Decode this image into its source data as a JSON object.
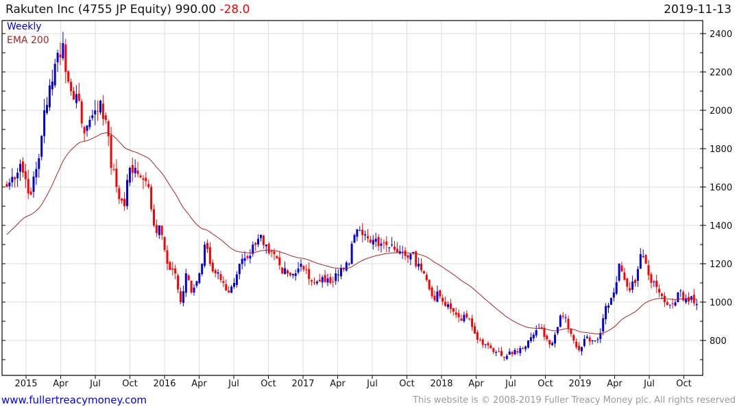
{
  "header": {
    "name": "Rakuten Inc (4755 JP Equity)",
    "price": "990.00",
    "change": "-28.0",
    "date": "2019-11-13"
  },
  "footer": {
    "link": "www.fullertreacymoney.com",
    "copyright": "This website is © 2008-2019 Fuller Treacy Money plc. All rights reserved"
  },
  "colors": {
    "up": "#0000dd",
    "down": "#ff0000",
    "ema": "#aa2222",
    "grid": "#dddddd"
  },
  "chart_data": {
    "type": "candlestick",
    "title": "Rakuten Inc (4755 JP Equity) 990.00 -28.0",
    "frequency_label": "Weekly",
    "overlay_label": "EMA 200",
    "ema_start": 1340,
    "ema_weeks": 40,
    "ylim": [
      650,
      2480
    ],
    "yticks": [
      800,
      1000,
      1200,
      1400,
      1600,
      1800,
      2000,
      2200,
      2400
    ],
    "xticks": [
      "2015",
      "Apr",
      "Jul",
      "Oct",
      "2016",
      "Apr",
      "Jul",
      "Oct",
      "2017",
      "Apr",
      "Jul",
      "Oct",
      "2018",
      "Apr",
      "Jul",
      "Oct",
      "2019",
      "Apr",
      "Jul",
      "Oct"
    ],
    "weekly_close_keypoints": [
      [
        0,
        1600
      ],
      [
        5,
        1720
      ],
      [
        9,
        1560
      ],
      [
        12,
        1750
      ],
      [
        14,
        2000
      ],
      [
        17,
        2150
      ],
      [
        19,
        2300
      ],
      [
        21,
        2350
      ],
      [
        22,
        2200
      ],
      [
        24,
        2100
      ],
      [
        27,
        2050
      ],
      [
        29,
        1880
      ],
      [
        31,
        1950
      ],
      [
        33,
        2000
      ],
      [
        35,
        2050
      ],
      [
        37,
        1950
      ],
      [
        39,
        1700
      ],
      [
        41,
        1600
      ],
      [
        44,
        1500
      ],
      [
        46,
        1700
      ],
      [
        48,
        1700
      ],
      [
        50,
        1650
      ],
      [
        53,
        1600
      ],
      [
        55,
        1400
      ],
      [
        58,
        1350
      ],
      [
        60,
        1200
      ],
      [
        63,
        1150
      ],
      [
        65,
        1000
      ],
      [
        67,
        1150
      ],
      [
        69,
        1050
      ],
      [
        72,
        1150
      ],
      [
        74,
        1300
      ],
      [
        76,
        1200
      ],
      [
        78,
        1150
      ],
      [
        81,
        1100
      ],
      [
        83,
        1050
      ],
      [
        85,
        1100
      ],
      [
        87,
        1200
      ],
      [
        90,
        1230
      ],
      [
        92,
        1300
      ],
      [
        95,
        1350
      ],
      [
        97,
        1300
      ],
      [
        100,
        1250
      ],
      [
        103,
        1150
      ],
      [
        105,
        1150
      ],
      [
        108,
        1150
      ],
      [
        110,
        1200
      ],
      [
        113,
        1120
      ],
      [
        115,
        1100
      ],
      [
        118,
        1130
      ],
      [
        121,
        1100
      ],
      [
        123,
        1150
      ],
      [
        126,
        1170
      ],
      [
        128,
        1200
      ],
      [
        130,
        1350
      ],
      [
        133,
        1350
      ],
      [
        136,
        1310
      ],
      [
        138,
        1330
      ],
      [
        141,
        1310
      ],
      [
        144,
        1300
      ],
      [
        146,
        1260
      ],
      [
        149,
        1240
      ],
      [
        151,
        1250
      ],
      [
        154,
        1200
      ],
      [
        156,
        1150
      ],
      [
        159,
        1030
      ],
      [
        162,
        1030
      ],
      [
        164,
        980
      ],
      [
        167,
        950
      ],
      [
        169,
        920
      ],
      [
        172,
        920
      ],
      [
        174,
        870
      ],
      [
        177,
        800
      ],
      [
        179,
        780
      ],
      [
        182,
        740
      ],
      [
        185,
        720
      ],
      [
        187,
        720
      ],
      [
        190,
        750
      ],
      [
        192,
        760
      ],
      [
        195,
        800
      ],
      [
        197,
        830
      ],
      [
        200,
        860
      ],
      [
        203,
        780
      ],
      [
        205,
        830
      ],
      [
        207,
        930
      ],
      [
        209,
        920
      ],
      [
        212,
        800
      ],
      [
        214,
        750
      ],
      [
        217,
        820
      ],
      [
        219,
        800
      ],
      [
        222,
        840
      ],
      [
        224,
        980
      ],
      [
        227,
        1050
      ],
      [
        229,
        1200
      ],
      [
        232,
        1080
      ],
      [
        235,
        1100
      ],
      [
        237,
        1250
      ],
      [
        239,
        1200
      ],
      [
        241,
        1100
      ],
      [
        244,
        1050
      ],
      [
        246,
        1000
      ],
      [
        249,
        990
      ],
      [
        251,
        1050
      ],
      [
        254,
        1020
      ],
      [
        256,
        1030
      ],
      [
        258,
        990
      ]
    ]
  }
}
